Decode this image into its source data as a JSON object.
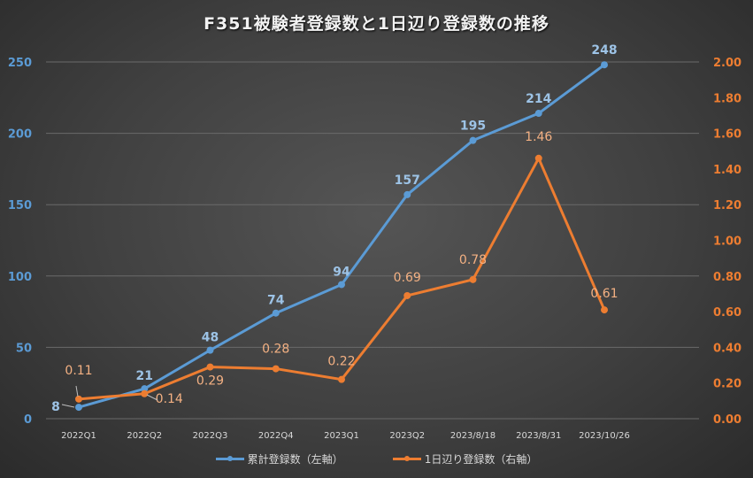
{
  "chart_data": {
    "type": "line",
    "title": "F351被験者登録数と1日辺り登録数の推移",
    "categories": [
      "2022Q1",
      "2022Q2",
      "2022Q3",
      "2022Q4",
      "2023Q1",
      "2023Q2",
      "2023/8/18",
      "2023/8/31",
      "2023/10/26"
    ],
    "series": [
      {
        "name": "累計登録数（左軸）",
        "axis": "left",
        "color": "#5b9bd5",
        "label_color": "#9dc3e6",
        "values": [
          8,
          21,
          48,
          74,
          94,
          157,
          195,
          214,
          248
        ],
        "labels": [
          "8",
          "21",
          "48",
          "74",
          "94",
          "157",
          "195",
          "214",
          "248"
        ]
      },
      {
        "name": "1日辺り登録数（右軸）",
        "axis": "right",
        "color": "#ed7d31",
        "label_color": "#f4b183",
        "values": [
          0.11,
          0.14,
          0.29,
          0.28,
          0.22,
          0.69,
          0.78,
          1.46,
          0.61
        ],
        "labels": [
          "0.11",
          "0.14",
          "0.29",
          "0.28",
          "0.22",
          "0.69",
          "0.78",
          "1.46",
          "0.61"
        ]
      }
    ],
    "y_left": {
      "range": [
        0,
        250
      ],
      "ticks": [
        "0",
        "50",
        "100",
        "150",
        "200",
        "250"
      ],
      "tick_color": "#5b9bd5"
    },
    "y_right": {
      "range": [
        0,
        2
      ],
      "ticks": [
        "0.00",
        "0.20",
        "0.40",
        "0.60",
        "0.80",
        "1.00",
        "1.20",
        "1.40",
        "1.60",
        "1.80",
        "2.00"
      ],
      "tick_color": "#ed7d31"
    },
    "grid": true,
    "legend_position": "bottom"
  }
}
